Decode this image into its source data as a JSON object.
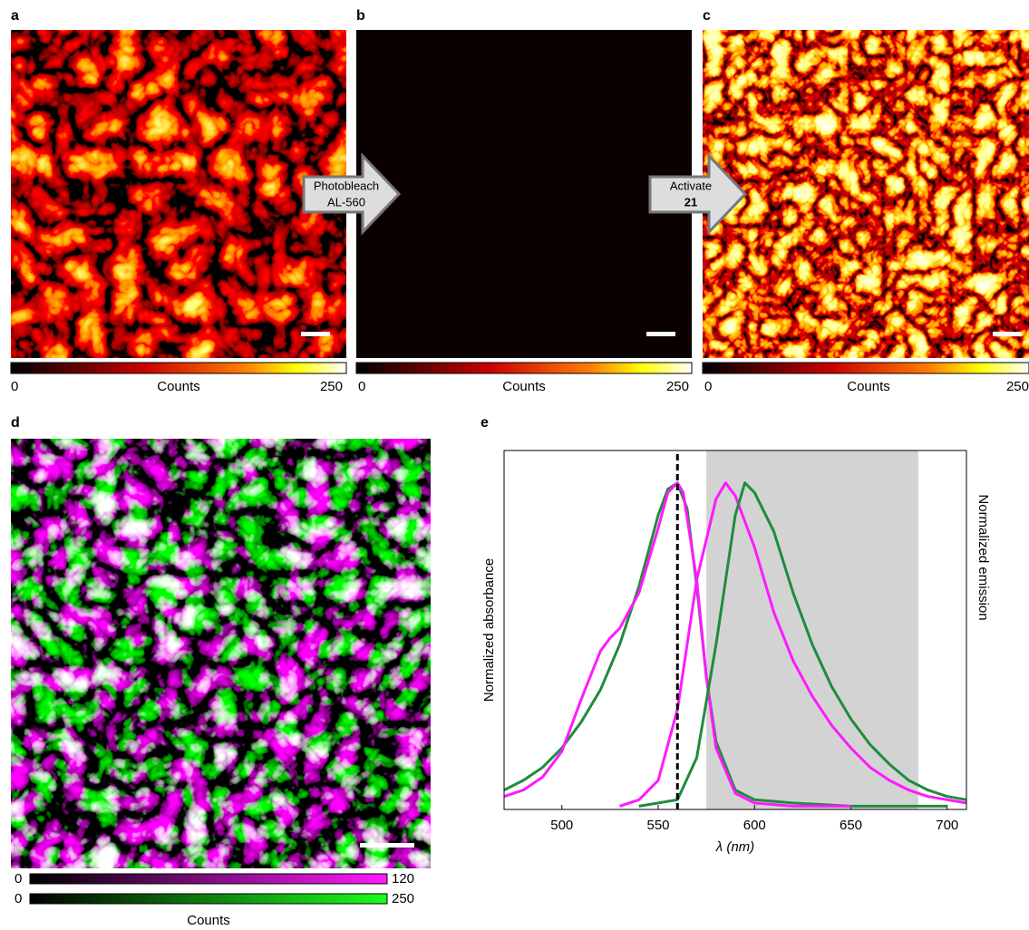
{
  "panels": {
    "a": {
      "letter": "a",
      "colorbar": {
        "min": "0",
        "label": "Counts",
        "max": "250"
      }
    },
    "b": {
      "letter": "b",
      "colorbar": {
        "min": "0",
        "label": "Counts",
        "max": "250"
      }
    },
    "c": {
      "letter": "c",
      "colorbar": {
        "min": "0",
        "label": "Counts",
        "max": "250"
      }
    },
    "d": {
      "letter": "d",
      "colorbars": [
        {
          "min": "0",
          "max": "120"
        },
        {
          "min": "0",
          "max": "250"
        }
      ],
      "label": "Counts"
    },
    "e": {
      "letter": "e"
    }
  },
  "arrows": [
    {
      "lines": [
        "Photobleach",
        "AL-560"
      ]
    },
    {
      "lines": [
        "Activate",
        "21"
      ]
    }
  ],
  "chart_data": {
    "type": "line",
    "xlabel": "λ (nm)",
    "ylabel": "Normalized absorbance",
    "y2label": "Normalized emission",
    "xlim": [
      470,
      710
    ],
    "xticks": [
      500,
      550,
      600,
      650,
      700
    ],
    "ylim": [
      -0.01,
      1.1
    ],
    "vline": 560,
    "shaded": [
      575,
      685
    ],
    "series": [
      {
        "color": "#1e8c3c",
        "x": [
          470,
          480,
          490,
          500,
          510,
          520,
          530,
          540,
          550,
          555,
          560,
          565,
          570,
          575,
          580,
          590,
          600,
          620,
          650,
          700
        ],
        "values": [
          0.05,
          0.08,
          0.12,
          0.18,
          0.26,
          0.36,
          0.5,
          0.68,
          0.9,
          0.98,
          1.0,
          0.92,
          0.68,
          0.4,
          0.2,
          0.05,
          0.02,
          0.01,
          0,
          0
        ]
      },
      {
        "color": "#ff1aff",
        "x": [
          470,
          480,
          490,
          500,
          510,
          520,
          525,
          530,
          540,
          550,
          555,
          560,
          563,
          570,
          575,
          580,
          590,
          600,
          620,
          650
        ],
        "values": [
          0.03,
          0.05,
          0.09,
          0.17,
          0.33,
          0.48,
          0.52,
          0.55,
          0.66,
          0.86,
          0.97,
          1.0,
          0.97,
          0.7,
          0.4,
          0.18,
          0.04,
          0.01,
          0,
          0
        ]
      },
      {
        "color": "#ff1aff",
        "x": [
          530,
          540,
          550,
          560,
          570,
          580,
          585,
          590,
          600,
          610,
          620,
          630,
          640,
          650,
          660,
          670,
          680,
          690,
          700,
          710
        ],
        "values": [
          0,
          0.02,
          0.08,
          0.3,
          0.7,
          0.95,
          1.0,
          0.96,
          0.8,
          0.6,
          0.45,
          0.34,
          0.25,
          0.18,
          0.12,
          0.08,
          0.05,
          0.03,
          0.02,
          0.01
        ]
      },
      {
        "color": "#1e8c3c",
        "x": [
          540,
          560,
          570,
          580,
          590,
          595,
          600,
          610,
          620,
          630,
          640,
          650,
          660,
          670,
          680,
          690,
          700,
          710
        ],
        "values": [
          0,
          0.02,
          0.15,
          0.5,
          0.9,
          1.0,
          0.97,
          0.85,
          0.66,
          0.5,
          0.37,
          0.27,
          0.19,
          0.13,
          0.08,
          0.05,
          0.03,
          0.02
        ]
      }
    ]
  }
}
